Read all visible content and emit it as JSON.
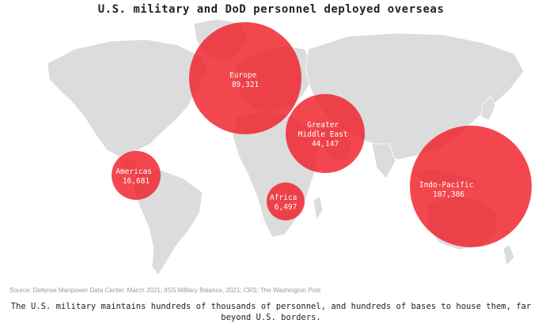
{
  "title": "U.S. military and DoD personnel deployed overseas",
  "regions": [
    {
      "id": "europe",
      "lines": [
        "Europe",
        "89,321"
      ],
      "personnel": 89321
    },
    {
      "id": "greater-middle-east",
      "lines": [
        "Greater",
        "Middle East",
        "44,147"
      ],
      "personnel": 44147
    },
    {
      "id": "americas",
      "lines": [
        "Americas",
        "16,681"
      ],
      "personnel": 16681
    },
    {
      "id": "africa",
      "lines": [
        "Africa",
        "6,497"
      ],
      "personnel": 6497
    },
    {
      "id": "indo-pacific",
      "lines": [
        "Indo-Pacific",
        "107,386"
      ],
      "personnel": 107386
    }
  ],
  "colors": {
    "bubble": "#f01e28",
    "land": "#dcdcdc"
  },
  "source": "Source: Defense Manpower Data Center, March 2021; IISS Military Balance, 2021; CRS; The Washington Post",
  "caption": "The U.S. military maintains hundreds of thousands of personnel, and hundreds of bases to house them, far beyond U.S. borders."
}
